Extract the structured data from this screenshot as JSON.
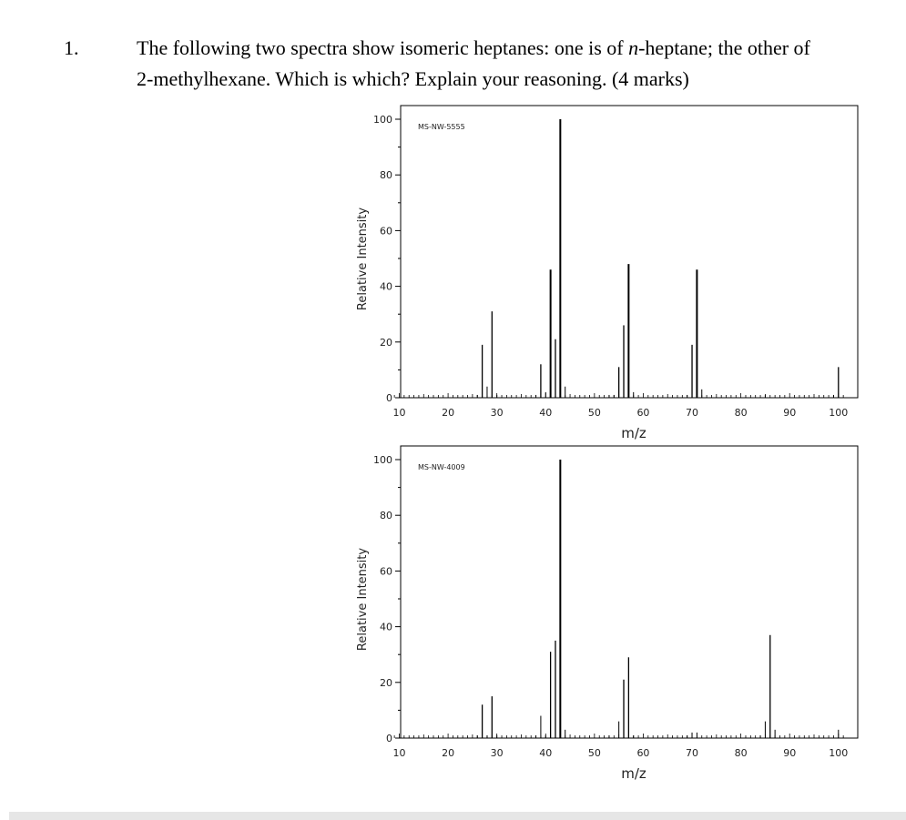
{
  "question": {
    "number": "1.",
    "line1_pre": "The following two spectra show isomeric heptanes: one is of ",
    "line1_italic": "n",
    "line1_post": "-heptane; the other of",
    "line2": "2-methylhexane. Which is which? Explain your reasoning. (4 marks)"
  },
  "chart_data": [
    {
      "type": "bar",
      "code": "MS-NW-5555",
      "xlabel": "m/z",
      "ylabel": "Relative Intensity",
      "xlim": [
        8,
        102
      ],
      "ylim": [
        0,
        100
      ],
      "x_ticks": [
        10,
        20,
        30,
        40,
        50,
        60,
        70,
        80,
        90,
        100
      ],
      "y_ticks": [
        0,
        20,
        40,
        60,
        80,
        100
      ],
      "peaks": [
        [
          26,
          1
        ],
        [
          27,
          19
        ],
        [
          28,
          4
        ],
        [
          29,
          31
        ],
        [
          30,
          1
        ],
        [
          38,
          1
        ],
        [
          39,
          12
        ],
        [
          40,
          2
        ],
        [
          41,
          46
        ],
        [
          42,
          21
        ],
        [
          43,
          100
        ],
        [
          44,
          4
        ],
        [
          53,
          1
        ],
        [
          54,
          1
        ],
        [
          55,
          11
        ],
        [
          56,
          26
        ],
        [
          57,
          48
        ],
        [
          58,
          2
        ],
        [
          69,
          1
        ],
        [
          70,
          19
        ],
        [
          71,
          46
        ],
        [
          72,
          3
        ],
        [
          85,
          1
        ],
        [
          99,
          1
        ],
        [
          100,
          11
        ]
      ]
    },
    {
      "type": "bar",
      "code": "MS-NW-4009",
      "xlabel": "m/z",
      "ylabel": "Relative Intensity",
      "xlim": [
        8,
        102
      ],
      "ylim": [
        0,
        100
      ],
      "x_ticks": [
        10,
        20,
        30,
        40,
        50,
        60,
        70,
        80,
        90,
        100
      ],
      "y_ticks": [
        0,
        20,
        40,
        60,
        80,
        100
      ],
      "peaks": [
        [
          26,
          1
        ],
        [
          27,
          12
        ],
        [
          28,
          1
        ],
        [
          29,
          15
        ],
        [
          30,
          1
        ],
        [
          38,
          1
        ],
        [
          39,
          8
        ],
        [
          40,
          1
        ],
        [
          41,
          31
        ],
        [
          42,
          35
        ],
        [
          43,
          100
        ],
        [
          44,
          3
        ],
        [
          53,
          1
        ],
        [
          55,
          6
        ],
        [
          56,
          21
        ],
        [
          57,
          29
        ],
        [
          58,
          1
        ],
        [
          69,
          1
        ],
        [
          70,
          2
        ],
        [
          71,
          2
        ],
        [
          84,
          1
        ],
        [
          85,
          6
        ],
        [
          86,
          37
        ],
        [
          87,
          3
        ],
        [
          100,
          3
        ]
      ]
    }
  ]
}
